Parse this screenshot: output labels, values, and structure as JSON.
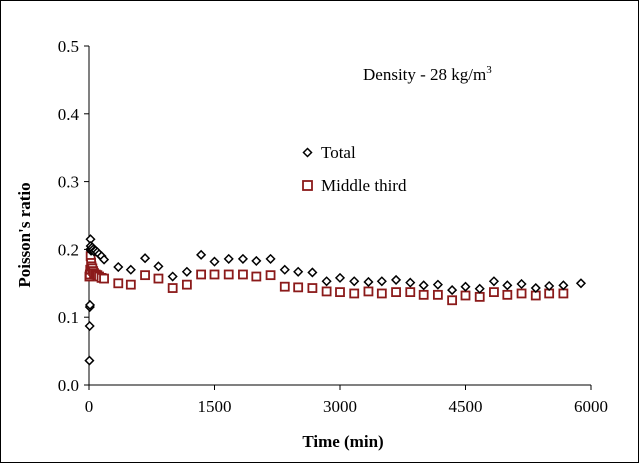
{
  "chart_data": {
    "type": "scatter",
    "title": "",
    "xlabel": "Time (min)",
    "ylabel": "Poisson's ratio",
    "xlim": [
      0,
      6000
    ],
    "ylim": [
      0.0,
      0.5
    ],
    "x_ticks": [
      0,
      1500,
      3000,
      4500,
      6000
    ],
    "y_ticks": [
      "0.0",
      "0.1",
      "0.2",
      "0.3",
      "0.4",
      "0.5"
    ],
    "grid": false,
    "legend_position": "center-right",
    "annotation": {
      "main": "Density - 28 kg/m",
      "sup": "3"
    },
    "series": [
      {
        "name": "Total",
        "marker": "diamond",
        "color": "#000000",
        "points": [
          [
            5,
            0.036
          ],
          [
            8,
            0.087
          ],
          [
            10,
            0.115
          ],
          [
            12,
            0.118
          ],
          [
            15,
            0.2
          ],
          [
            18,
            0.215
          ],
          [
            20,
            0.205
          ],
          [
            25,
            0.198
          ],
          [
            30,
            0.2
          ],
          [
            40,
            0.203
          ],
          [
            50,
            0.2
          ],
          [
            60,
            0.197
          ],
          [
            80,
            0.198
          ],
          [
            100,
            0.196
          ],
          [
            120,
            0.193
          ],
          [
            150,
            0.19
          ],
          [
            180,
            0.185
          ],
          [
            350,
            0.174
          ],
          [
            500,
            0.17
          ],
          [
            670,
            0.187
          ],
          [
            830,
            0.175
          ],
          [
            1000,
            0.16
          ],
          [
            1170,
            0.167
          ],
          [
            1340,
            0.192
          ],
          [
            1500,
            0.182
          ],
          [
            1670,
            0.186
          ],
          [
            1840,
            0.186
          ],
          [
            2000,
            0.183
          ],
          [
            2170,
            0.186
          ],
          [
            2340,
            0.17
          ],
          [
            2500,
            0.167
          ],
          [
            2670,
            0.166
          ],
          [
            2840,
            0.153
          ],
          [
            3000,
            0.158
          ],
          [
            3170,
            0.153
          ],
          [
            3340,
            0.152
          ],
          [
            3500,
            0.153
          ],
          [
            3670,
            0.155
          ],
          [
            3840,
            0.151
          ],
          [
            4000,
            0.147
          ],
          [
            4170,
            0.148
          ],
          [
            4340,
            0.14
          ],
          [
            4500,
            0.145
          ],
          [
            4670,
            0.142
          ],
          [
            4840,
            0.153
          ],
          [
            5000,
            0.147
          ],
          [
            5170,
            0.149
          ],
          [
            5340,
            0.143
          ],
          [
            5500,
            0.146
          ],
          [
            5670,
            0.147
          ],
          [
            5880,
            0.15
          ]
        ]
      },
      {
        "name": "Middle third",
        "marker": "square",
        "color": "#8b1a1a",
        "points": [
          [
            5,
            0.16
          ],
          [
            10,
            0.163
          ],
          [
            15,
            0.17
          ],
          [
            20,
            0.19
          ],
          [
            25,
            0.18
          ],
          [
            30,
            0.175
          ],
          [
            40,
            0.172
          ],
          [
            50,
            0.168
          ],
          [
            60,
            0.165
          ],
          [
            80,
            0.163
          ],
          [
            100,
            0.162
          ],
          [
            120,
            0.16
          ],
          [
            150,
            0.158
          ],
          [
            180,
            0.157
          ],
          [
            350,
            0.15
          ],
          [
            500,
            0.148
          ],
          [
            670,
            0.162
          ],
          [
            830,
            0.157
          ],
          [
            1000,
            0.143
          ],
          [
            1170,
            0.148
          ],
          [
            1340,
            0.163
          ],
          [
            1500,
            0.163
          ],
          [
            1670,
            0.163
          ],
          [
            1840,
            0.163
          ],
          [
            2000,
            0.16
          ],
          [
            2170,
            0.162
          ],
          [
            2340,
            0.145
          ],
          [
            2500,
            0.144
          ],
          [
            2670,
            0.143
          ],
          [
            2840,
            0.138
          ],
          [
            3000,
            0.137
          ],
          [
            3170,
            0.135
          ],
          [
            3340,
            0.138
          ],
          [
            3500,
            0.135
          ],
          [
            3670,
            0.137
          ],
          [
            3840,
            0.137
          ],
          [
            4000,
            0.133
          ],
          [
            4170,
            0.133
          ],
          [
            4340,
            0.125
          ],
          [
            4500,
            0.132
          ],
          [
            4670,
            0.13
          ],
          [
            4840,
            0.137
          ],
          [
            5000,
            0.133
          ],
          [
            5170,
            0.135
          ],
          [
            5340,
            0.132
          ],
          [
            5500,
            0.135
          ],
          [
            5670,
            0.135
          ]
        ]
      }
    ]
  }
}
